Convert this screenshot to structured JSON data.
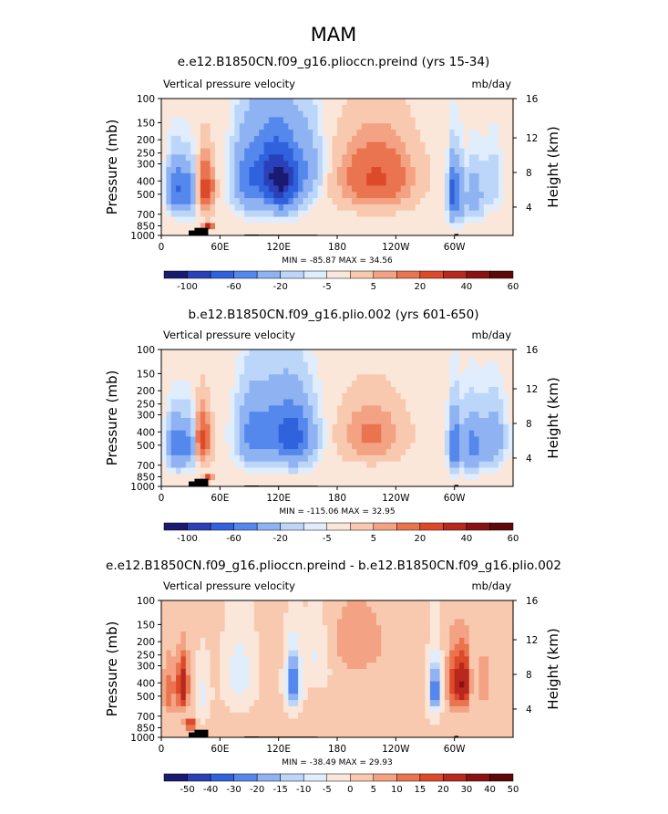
{
  "figure_title": "MAM",
  "palette": [
    "#1a1a70",
    "#2a40b8",
    "#2f62dc",
    "#5588ec",
    "#8fb2f2",
    "#bcd6fa",
    "#e0edfc",
    "#fbe6da",
    "#f8c9ae",
    "#f3a283",
    "#ea744f",
    "#dc4a2a",
    "#b8281c",
    "#8a1212",
    "#5e0808"
  ],
  "chart_data": [
    {
      "type": "heatmap",
      "title": "e.e12.B1850CN.f09_g16.plioccn.preind (yrs 15-34)",
      "variable_label": "Vertical pressure velocity",
      "units": "mb/day",
      "ylabel_left": "Pressure (mb)",
      "ylabel_right": "Height (km)",
      "x_ticks": [
        "0",
        "60E",
        "120E",
        "180",
        "120W",
        "60W"
      ],
      "y_ticks": [
        "100",
        "150",
        "200",
        "250",
        "300",
        "400",
        "500",
        "700",
        "850",
        "1000"
      ],
      "height_ticks": [
        "16",
        "12",
        "8",
        "4"
      ],
      "min_max_text": "MIN = -85.87   MAX =  34.56",
      "colorbar_labels": [
        "-100",
        "-60",
        "-20",
        "-5",
        "5",
        "20",
        "40",
        "60"
      ],
      "levels": [
        -100,
        -80,
        -60,
        -40,
        -20,
        -10,
        -5,
        0,
        5,
        10,
        20,
        30,
        40,
        50,
        60
      ],
      "background_value": -2,
      "features": [
        {
          "lon": 15,
          "p": 450,
          "lon_width": 6,
          "p_width": 260,
          "value": -60
        },
        {
          "lon": 28,
          "p": 480,
          "lon_width": 5,
          "p_width": 280,
          "value": -45
        },
        {
          "lon": 45,
          "p": 450,
          "lon_width": 6,
          "p_width": 260,
          "value": 28
        },
        {
          "lon": 48,
          "p": 850,
          "lon_width": 3,
          "p_width": 60,
          "value": 40
        },
        {
          "lon": 85,
          "p": 400,
          "lon_width": 8,
          "p_width": 320,
          "value": -28
        },
        {
          "lon": 105,
          "p": 350,
          "lon_width": 16,
          "p_width": 340,
          "value": -55
        },
        {
          "lon": 125,
          "p": 400,
          "lon_width": 13,
          "p_width": 330,
          "value": -80
        },
        {
          "lon": 150,
          "p": 300,
          "lon_width": 10,
          "p_width": 280,
          "value": -25
        },
        {
          "lon": 220,
          "p": 380,
          "lon_width": 25,
          "p_width": 300,
          "value": 24
        },
        {
          "lon": 298,
          "p": 500,
          "lon_width": 3,
          "p_width": 320,
          "value": -70
        },
        {
          "lon": 305,
          "p": 500,
          "lon_width": 4,
          "p_width": 320,
          "value": -40
        },
        {
          "lon": 312,
          "p": 420,
          "lon_width": 4,
          "p_width": 280,
          "value": 6
        },
        {
          "lon": 320,
          "p": 500,
          "lon_width": 7,
          "p_width": 320,
          "value": -30
        },
        {
          "lon": 340,
          "p": 400,
          "lon_width": 6,
          "p_width": 280,
          "value": -15
        }
      ]
    },
    {
      "type": "heatmap",
      "title": "b.e12.B1850CN.f09_g16.plio.002 (yrs 601-650)",
      "variable_label": "Vertical pressure velocity",
      "units": "mb/day",
      "ylabel_left": "Pressure (mb)",
      "ylabel_right": "Height (km)",
      "x_ticks": [
        "0",
        "60E",
        "120E",
        "180",
        "120W",
        "60W"
      ],
      "y_ticks": [
        "100",
        "150",
        "200",
        "250",
        "300",
        "400",
        "500",
        "700",
        "850",
        "1000"
      ],
      "height_ticks": [
        "16",
        "12",
        "8",
        "4"
      ],
      "min_max_text": "MIN = -115.06   MAX =  32.95",
      "colorbar_labels": [
        "-100",
        "-60",
        "-20",
        "-5",
        "5",
        "20",
        "40",
        "60"
      ],
      "levels": [
        -100,
        -80,
        -60,
        -40,
        -20,
        -10,
        -5,
        0,
        5,
        10,
        20,
        30,
        40,
        50,
        60
      ],
      "background_value": -2,
      "features": [
        {
          "lon": 15,
          "p": 500,
          "lon_width": 6,
          "p_width": 280,
          "value": -55
        },
        {
          "lon": 28,
          "p": 500,
          "lon_width": 5,
          "p_width": 280,
          "value": -40
        },
        {
          "lon": 42,
          "p": 450,
          "lon_width": 6,
          "p_width": 260,
          "value": 26
        },
        {
          "lon": 48,
          "p": 880,
          "lon_width": 3,
          "p_width": 60,
          "value": 32
        },
        {
          "lon": 90,
          "p": 420,
          "lon_width": 9,
          "p_width": 320,
          "value": -28
        },
        {
          "lon": 118,
          "p": 400,
          "lon_width": 20,
          "p_width": 340,
          "value": -50
        },
        {
          "lon": 140,
          "p": 450,
          "lon_width": 12,
          "p_width": 320,
          "value": -40
        },
        {
          "lon": 215,
          "p": 420,
          "lon_width": 22,
          "p_width": 280,
          "value": 14
        },
        {
          "lon": 300,
          "p": 500,
          "lon_width": 4,
          "p_width": 330,
          "value": -60
        },
        {
          "lon": 318,
          "p": 500,
          "lon_width": 8,
          "p_width": 330,
          "value": -45
        },
        {
          "lon": 340,
          "p": 450,
          "lon_width": 8,
          "p_width": 300,
          "value": -35
        }
      ]
    },
    {
      "type": "heatmap",
      "title": "e.e12.B1850CN.f09_g16.plioccn.preind - b.e12.B1850CN.f09_g16.plio.002",
      "variable_label": "Vertical pressure velocity",
      "units": "mb/day",
      "ylabel_left": "Pressure (mb)",
      "ylabel_right": "Height (km)",
      "x_ticks": [
        "0",
        "60E",
        "120E",
        "180",
        "120W",
        "60W"
      ],
      "y_ticks": [
        "100",
        "150",
        "200",
        "250",
        "300",
        "400",
        "500",
        "700",
        "850",
        "1000"
      ],
      "height_ticks": [
        "16",
        "12",
        "8",
        "4"
      ],
      "min_max_text": "MIN = -38.49   MAX =  29.93",
      "colorbar_labels": [
        "-50",
        "-40",
        "-30",
        "-20",
        "-15",
        "-10",
        "-5",
        "0",
        "5",
        "10",
        "15",
        "20",
        "30",
        "40",
        "50"
      ],
      "levels": [
        -50,
        -40,
        -30,
        -20,
        -15,
        -10,
        -5,
        0,
        5,
        10,
        15,
        20,
        30,
        40,
        50
      ],
      "background_value": 1,
      "features": [
        {
          "lon": 8,
          "p": 450,
          "lon_width": 5,
          "p_width": 300,
          "value": 12
        },
        {
          "lon": 22,
          "p": 420,
          "lon_width": 4,
          "p_width": 260,
          "value": 28
        },
        {
          "lon": 30,
          "p": 800,
          "lon_width": 4,
          "p_width": 100,
          "value": 24
        },
        {
          "lon": 42,
          "p": 500,
          "lon_width": 5,
          "p_width": 300,
          "value": -8
        },
        {
          "lon": 80,
          "p": 350,
          "lon_width": 10,
          "p_width": 300,
          "value": -10
        },
        {
          "lon": 135,
          "p": 400,
          "lon_width": 5,
          "p_width": 260,
          "value": -30
        },
        {
          "lon": 160,
          "p": 250,
          "lon_width": 10,
          "p_width": 200,
          "value": -8
        },
        {
          "lon": 200,
          "p": 200,
          "lon_width": 25,
          "p_width": 200,
          "value": 7
        },
        {
          "lon": 280,
          "p": 450,
          "lon_width": 4,
          "p_width": 280,
          "value": -28
        },
        {
          "lon": 300,
          "p": 400,
          "lon_width": 5,
          "p_width": 280,
          "value": 20
        },
        {
          "lon": 310,
          "p": 400,
          "lon_width": 4,
          "p_width": 260,
          "value": 28
        },
        {
          "lon": 330,
          "p": 400,
          "lon_width": 5,
          "p_width": 280,
          "value": 8
        }
      ]
    }
  ]
}
